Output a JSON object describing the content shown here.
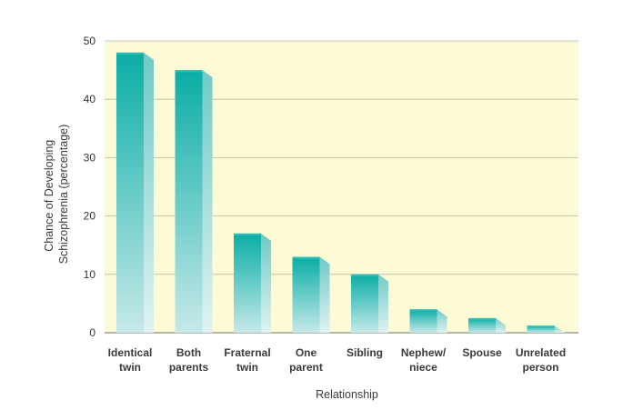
{
  "chart_data": {
    "type": "bar",
    "title": "",
    "xlabel": "Relationship",
    "ylabel_lines": [
      "Chance of Developing",
      "Schizophrenia (percentage)"
    ],
    "categories": [
      [
        "Identical",
        "twin"
      ],
      [
        "Both",
        "parents"
      ],
      [
        "Fraternal",
        "twin"
      ],
      [
        "One",
        "parent"
      ],
      [
        "Sibling"
      ],
      [
        "Nephew/",
        "niece"
      ],
      [
        "Spouse"
      ],
      [
        "Unrelated",
        "person"
      ]
    ],
    "values": [
      48,
      45,
      17,
      13,
      10,
      4,
      2.5,
      1.2
    ],
    "ylim": [
      0,
      50
    ],
    "yticks": [
      0,
      10,
      20,
      30,
      40,
      50
    ],
    "grid": true,
    "colors": {
      "plot_background": "#fdfbd6",
      "gridline": "#b8b8a6",
      "bar_top": "#0aada6",
      "bar_bottom": "#c6e9e9",
      "bar_side_top": "#6fcac6",
      "bar_side_bottom": "#dff2f1",
      "bar_cap": "#2fbcb5"
    }
  }
}
